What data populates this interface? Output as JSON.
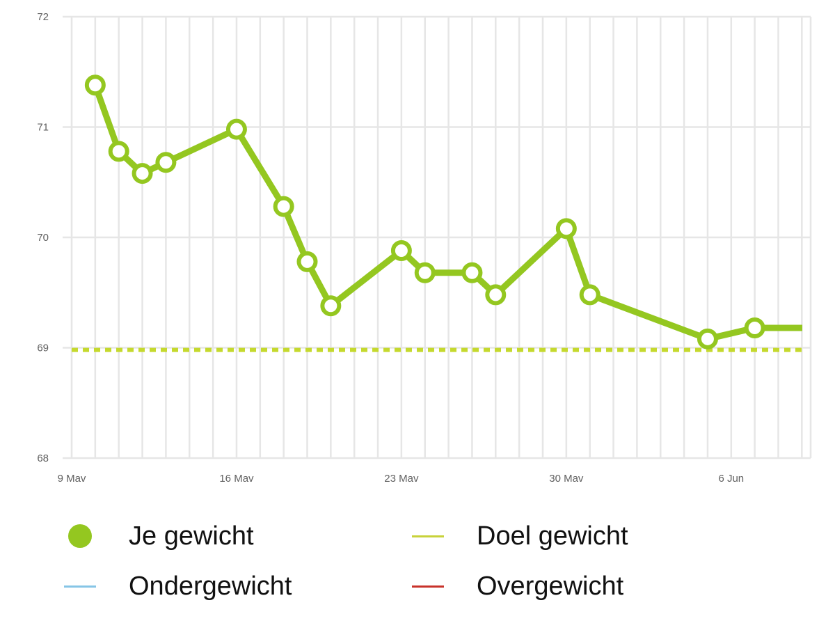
{
  "chart_data": {
    "type": "line",
    "title": "",
    "xlabel": "",
    "ylabel": "",
    "ylim": [
      68,
      72
    ],
    "yticks": [
      "72",
      "71",
      "70",
      "69",
      "68"
    ],
    "xlim_days": [
      0,
      30.5
    ],
    "xtick_labels": [
      {
        "day": 0,
        "label": "9 Mav"
      },
      {
        "day": 7,
        "label": "16 Mav"
      },
      {
        "day": 14,
        "label": "23 Mav"
      },
      {
        "day": 21,
        "label": "30 Mav"
      },
      {
        "day": 28,
        "label": "6 Jun"
      }
    ],
    "series": [
      {
        "name": "Je gewicht",
        "color": "#94c720",
        "x_days": [
          1,
          2,
          3,
          4,
          7,
          9,
          10,
          11,
          14,
          15,
          17,
          18,
          21,
          22,
          27,
          29
        ],
        "values": [
          71.38,
          70.78,
          70.58,
          70.68,
          70.98,
          70.28,
          69.78,
          69.38,
          69.88,
          69.68,
          69.68,
          69.48,
          70.08,
          69.48,
          69.08,
          69.18
        ],
        "tail_value": 69.18
      },
      {
        "name": "Doel gewicht",
        "color": "#c5d92e",
        "value": 68.98
      }
    ],
    "legend": [
      {
        "label": "Je gewicht",
        "color": "#94c720",
        "kind": "dot"
      },
      {
        "label": "Doel gewicht",
        "color": "#c8d23a",
        "kind": "line"
      },
      {
        "label": "Ondergewicht",
        "color": "#86c5e6",
        "kind": "line"
      },
      {
        "label": "Overgewicht",
        "color": "#c8322a",
        "kind": "line"
      }
    ],
    "grid": true,
    "legend_position": "bottom"
  }
}
